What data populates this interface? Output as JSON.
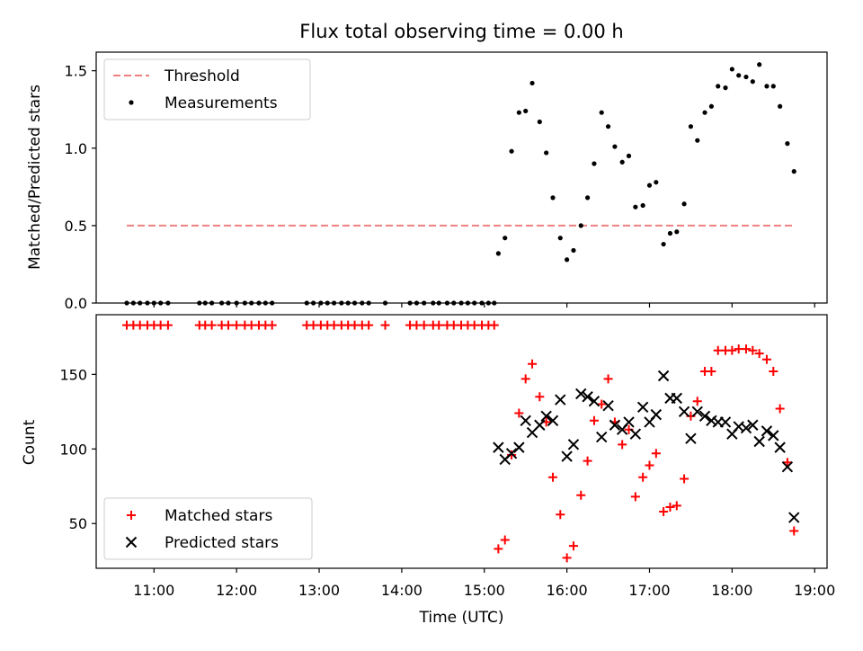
{
  "figure": {
    "title": "Flux total observing time = 0.00 h",
    "xlabel": "Time (UTC)",
    "xticks": [
      "11:00",
      "12:00",
      "13:00",
      "14:00",
      "15:00",
      "16:00",
      "17:00",
      "18:00",
      "19:00"
    ]
  },
  "colors": {
    "threshold": "#f08080",
    "measurements": "#000000",
    "matched": "#ff0000",
    "predicted": "#000000"
  },
  "chart_data": [
    {
      "type": "scatter",
      "ylabel": "Matched/Predicted stars",
      "xlim": [
        10.3,
        19.15
      ],
      "ylim": [
        0,
        1.62
      ],
      "yticks": [
        "0.0",
        "0.5",
        "1.0",
        "1.5"
      ],
      "legend_position": "top-left",
      "threshold": {
        "name": "Threshold",
        "value": 0.5,
        "x_range": [
          10.67,
          18.75
        ]
      },
      "series": [
        {
          "name": "Measurements",
          "points": [
            [
              10.67,
              0
            ],
            [
              10.75,
              0
            ],
            [
              10.83,
              0
            ],
            [
              10.92,
              0
            ],
            [
              11.0,
              0
            ],
            [
              11.08,
              0
            ],
            [
              11.17,
              0
            ],
            [
              11.55,
              0
            ],
            [
              11.62,
              0
            ],
            [
              11.7,
              0
            ],
            [
              11.82,
              0
            ],
            [
              11.9,
              0
            ],
            [
              12.0,
              0
            ],
            [
              12.1,
              0
            ],
            [
              12.18,
              0
            ],
            [
              12.27,
              0
            ],
            [
              12.35,
              0
            ],
            [
              12.43,
              0
            ],
            [
              12.85,
              0
            ],
            [
              12.93,
              0
            ],
            [
              13.02,
              0
            ],
            [
              13.1,
              0
            ],
            [
              13.18,
              0
            ],
            [
              13.27,
              0
            ],
            [
              13.35,
              0
            ],
            [
              13.43,
              0
            ],
            [
              13.52,
              0
            ],
            [
              13.6,
              0
            ],
            [
              13.8,
              0
            ],
            [
              14.1,
              0
            ],
            [
              14.18,
              0
            ],
            [
              14.27,
              0
            ],
            [
              14.38,
              0
            ],
            [
              14.45,
              0
            ],
            [
              14.55,
              0
            ],
            [
              14.63,
              0
            ],
            [
              14.72,
              0
            ],
            [
              14.8,
              0
            ],
            [
              14.88,
              0
            ],
            [
              14.97,
              0
            ],
            [
              15.05,
              0
            ],
            [
              15.12,
              0
            ],
            [
              15.17,
              0.32
            ],
            [
              15.25,
              0.42
            ],
            [
              15.33,
              0.98
            ],
            [
              15.42,
              1.23
            ],
            [
              15.5,
              1.24
            ],
            [
              15.58,
              1.42
            ],
            [
              15.67,
              1.17
            ],
            [
              15.75,
              0.97
            ],
            [
              15.83,
              0.68
            ],
            [
              15.92,
              0.42
            ],
            [
              16.0,
              0.28
            ],
            [
              16.08,
              0.34
            ],
            [
              16.17,
              0.5
            ],
            [
              16.25,
              0.68
            ],
            [
              16.33,
              0.9
            ],
            [
              16.42,
              1.23
            ],
            [
              16.5,
              1.14
            ],
            [
              16.58,
              1.01
            ],
            [
              16.67,
              0.91
            ],
            [
              16.75,
              0.95
            ],
            [
              16.83,
              0.62
            ],
            [
              16.92,
              0.63
            ],
            [
              17.0,
              0.76
            ],
            [
              17.08,
              0.78
            ],
            [
              17.17,
              0.38
            ],
            [
              17.25,
              0.45
            ],
            [
              17.33,
              0.46
            ],
            [
              17.42,
              0.64
            ],
            [
              17.5,
              1.14
            ],
            [
              17.58,
              1.05
            ],
            [
              17.67,
              1.23
            ],
            [
              17.75,
              1.27
            ],
            [
              17.83,
              1.4
            ],
            [
              17.92,
              1.39
            ],
            [
              18.0,
              1.51
            ],
            [
              18.08,
              1.47
            ],
            [
              18.17,
              1.46
            ],
            [
              18.25,
              1.43
            ],
            [
              18.33,
              1.54
            ],
            [
              18.42,
              1.4
            ],
            [
              18.5,
              1.4
            ],
            [
              18.58,
              1.27
            ],
            [
              18.67,
              1.03
            ],
            [
              18.75,
              0.85
            ]
          ]
        }
      ]
    },
    {
      "type": "scatter",
      "ylabel": "Count",
      "xlim": [
        10.3,
        19.15
      ],
      "ylim": [
        20,
        190
      ],
      "yticks": [
        "50",
        "100",
        "150"
      ],
      "legend_position": "lower-left",
      "series": [
        {
          "name": "Matched stars",
          "marker": "plus",
          "points": [
            [
              10.67,
              183
            ],
            [
              10.75,
              183
            ],
            [
              10.83,
              183
            ],
            [
              10.92,
              183
            ],
            [
              11.0,
              183
            ],
            [
              11.08,
              183
            ],
            [
              11.17,
              183
            ],
            [
              11.55,
              183
            ],
            [
              11.62,
              183
            ],
            [
              11.7,
              183
            ],
            [
              11.82,
              183
            ],
            [
              11.9,
              183
            ],
            [
              12.0,
              183
            ],
            [
              12.1,
              183
            ],
            [
              12.18,
              183
            ],
            [
              12.27,
              183
            ],
            [
              12.35,
              183
            ],
            [
              12.43,
              183
            ],
            [
              12.85,
              183
            ],
            [
              12.93,
              183
            ],
            [
              13.02,
              183
            ],
            [
              13.1,
              183
            ],
            [
              13.18,
              183
            ],
            [
              13.27,
              183
            ],
            [
              13.35,
              183
            ],
            [
              13.43,
              183
            ],
            [
              13.52,
              183
            ],
            [
              13.6,
              183
            ],
            [
              13.8,
              183
            ],
            [
              14.1,
              183
            ],
            [
              14.18,
              183
            ],
            [
              14.27,
              183
            ],
            [
              14.38,
              183
            ],
            [
              14.45,
              183
            ],
            [
              14.55,
              183
            ],
            [
              14.63,
              183
            ],
            [
              14.72,
              183
            ],
            [
              14.8,
              183
            ],
            [
              14.88,
              183
            ],
            [
              14.97,
              183
            ],
            [
              15.05,
              183
            ],
            [
              15.12,
              183
            ],
            [
              15.17,
              33
            ],
            [
              15.25,
              39
            ],
            [
              15.33,
              96
            ],
            [
              15.42,
              124
            ],
            [
              15.5,
              147
            ],
            [
              15.58,
              157
            ],
            [
              15.67,
              135
            ],
            [
              15.75,
              118
            ],
            [
              15.83,
              81
            ],
            [
              15.92,
              56
            ],
            [
              16.0,
              27
            ],
            [
              16.08,
              35
            ],
            [
              16.17,
              69
            ],
            [
              16.25,
              92
            ],
            [
              16.33,
              119
            ],
            [
              16.42,
              130
            ],
            [
              16.5,
              147
            ],
            [
              16.58,
              118
            ],
            [
              16.67,
              103
            ],
            [
              16.75,
              113
            ],
            [
              16.83,
              68
            ],
            [
              16.92,
              81
            ],
            [
              17.0,
              89
            ],
            [
              17.08,
              97
            ],
            [
              17.17,
              58
            ],
            [
              17.25,
              61
            ],
            [
              17.33,
              62
            ],
            [
              17.42,
              80
            ],
            [
              17.5,
              122
            ],
            [
              17.58,
              132
            ],
            [
              17.67,
              152
            ],
            [
              17.75,
              152
            ],
            [
              17.83,
              166
            ],
            [
              17.92,
              166
            ],
            [
              18.0,
              166
            ],
            [
              18.08,
              167
            ],
            [
              18.17,
              167
            ],
            [
              18.25,
              166
            ],
            [
              18.33,
              164
            ],
            [
              18.42,
              160
            ],
            [
              18.5,
              152
            ],
            [
              18.58,
              127
            ],
            [
              18.67,
              91
            ],
            [
              18.75,
              45
            ]
          ]
        },
        {
          "name": "Predicted stars",
          "marker": "x",
          "points": [
            [
              15.17,
              101
            ],
            [
              15.25,
              93
            ],
            [
              15.33,
              97
            ],
            [
              15.42,
              101
            ],
            [
              15.5,
              119
            ],
            [
              15.58,
              111
            ],
            [
              15.67,
              116
            ],
            [
              15.75,
              122
            ],
            [
              15.83,
              119
            ],
            [
              15.92,
              133
            ],
            [
              16.0,
              95
            ],
            [
              16.08,
              103
            ],
            [
              16.17,
              137
            ],
            [
              16.25,
              135
            ],
            [
              16.33,
              132
            ],
            [
              16.42,
              108
            ],
            [
              16.5,
              129
            ],
            [
              16.58,
              116
            ],
            [
              16.67,
              113
            ],
            [
              16.75,
              118
            ],
            [
              16.83,
              110
            ],
            [
              16.92,
              128
            ],
            [
              17.0,
              118
            ],
            [
              17.08,
              123
            ],
            [
              17.17,
              149
            ],
            [
              17.25,
              134
            ],
            [
              17.33,
              134
            ],
            [
              17.42,
              125
            ],
            [
              17.5,
              107
            ],
            [
              17.58,
              125
            ],
            [
              17.67,
              122
            ],
            [
              17.75,
              119
            ],
            [
              17.83,
              118
            ],
            [
              17.92,
              118
            ],
            [
              18.0,
              110
            ],
            [
              18.08,
              115
            ],
            [
              18.17,
              114
            ],
            [
              18.25,
              116
            ],
            [
              18.33,
              105
            ],
            [
              18.42,
              112
            ],
            [
              18.5,
              109
            ],
            [
              18.58,
              101
            ],
            [
              18.67,
              88
            ],
            [
              18.75,
              54
            ]
          ]
        }
      ]
    }
  ]
}
